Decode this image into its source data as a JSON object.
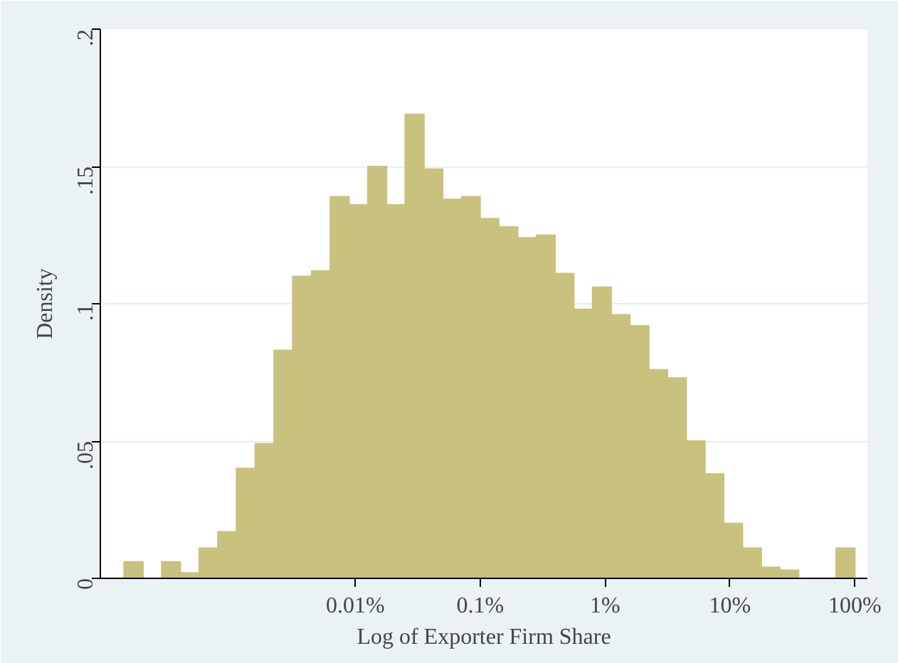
{
  "chart_data": {
    "type": "histogram",
    "xlabel": "Log of Exporter Firm Share",
    "ylabel": "Density",
    "bins": [
      0.000141,
      0.0002,
      0.000282,
      0.000398,
      0.000562,
      0.000794,
      0.00112,
      0.00158,
      0.00224,
      0.00316,
      0.00447,
      0.00631,
      0.00891,
      0.0126,
      0.0178,
      0.0251,
      0.0355,
      0.0501,
      0.0708,
      0.1,
      0.141,
      0.2,
      0.282,
      0.398,
      0.562,
      0.794,
      1.12,
      1.58,
      2.24,
      3.16,
      4.47,
      6.31,
      8.91,
      12.6,
      17.8,
      25.1,
      35.5,
      50.1,
      70.8,
      100
    ],
    "values": [
      0.006,
      0.0,
      0.006,
      0.002,
      0.011,
      0.017,
      0.04,
      0.049,
      0.083,
      0.11,
      0.112,
      0.139,
      0.136,
      0.15,
      0.136,
      0.169,
      0.149,
      0.138,
      0.139,
      0.131,
      0.128,
      0.124,
      0.125,
      0.111,
      0.098,
      0.106,
      0.096,
      0.092,
      0.076,
      0.073,
      0.05,
      0.038,
      0.02,
      0.011,
      0.004,
      0.003,
      0.0,
      0.0,
      0.011
    ],
    "color": "#c9c17e",
    "xlim": [
      9.1e-05,
      126
    ],
    "ylim": [
      0,
      0.2
    ],
    "log": "x",
    "xticks": [
      {
        "value": 0.01,
        "label": "0.01%"
      },
      {
        "value": 0.1,
        "label": "0.1%"
      },
      {
        "value": 1,
        "label": "1%"
      },
      {
        "value": 10,
        "label": "10%"
      },
      {
        "value": 100,
        "label": "100%"
      }
    ],
    "yticks": [
      {
        "value": 0,
        "label": "0"
      },
      {
        "value": 0.05,
        "label": ".05"
      },
      {
        "value": 0.1,
        "label": ".1"
      },
      {
        "value": 0.15,
        "label": ".15"
      },
      {
        "value": 0.2,
        "label": ".2"
      }
    ],
    "grid": "y"
  }
}
